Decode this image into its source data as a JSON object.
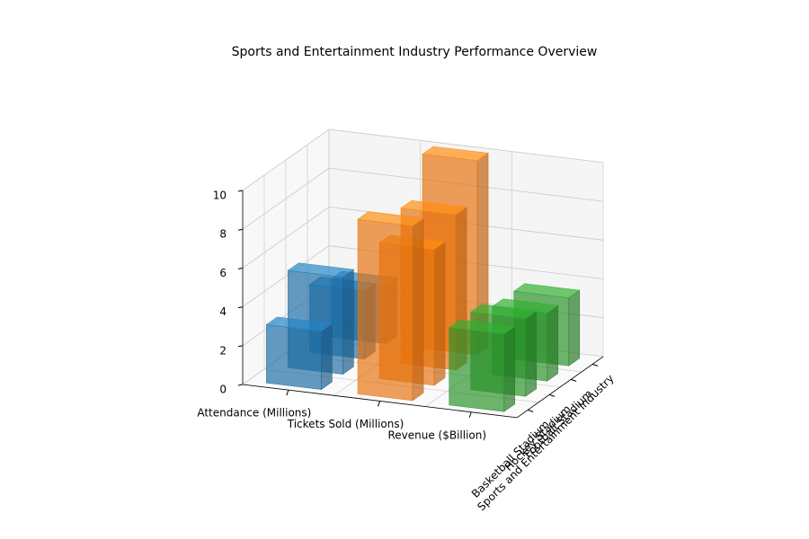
{
  "chart_data": {
    "type": "bar3d",
    "title": "Sports and Entertainment Industry Performance Overview",
    "categories": [
      "Basketball Stadium",
      "Hockey Stadium",
      "Football Stadium",
      "Sports and Entertainment Industry"
    ],
    "series": [
      {
        "name": "Attendance (Millions)",
        "color": "#1f77b4",
        "values": [
          3,
          5,
          3.5,
          3
        ]
      },
      {
        "name": "Tickets Sold (Millions)",
        "color": "#ff7f0e",
        "values": [
          9,
          7,
          8,
          10
        ]
      },
      {
        "name": "Revenue ($Billion)",
        "color": "#2ca02c",
        "values": [
          4,
          4,
          3.5,
          3.5
        ]
      }
    ],
    "zlim": [
      0,
      10
    ],
    "zticks": [
      0,
      2,
      4,
      6,
      8,
      10
    ],
    "grid": true
  }
}
